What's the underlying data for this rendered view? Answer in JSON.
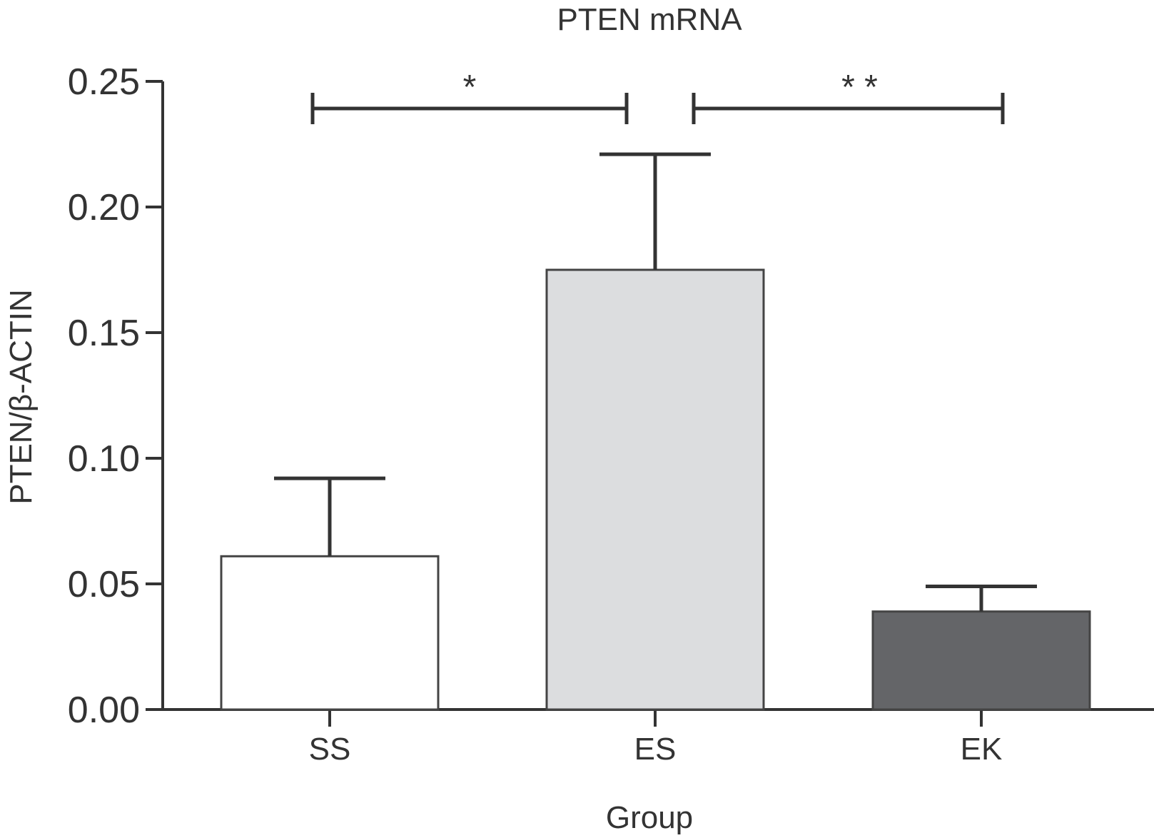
{
  "chart_data": {
    "type": "bar",
    "title": "PTEN mRNA",
    "xlabel": "Group",
    "ylabel": "PTEN/β-ACTIN",
    "categories": [
      "SS",
      "ES",
      "EK"
    ],
    "values": [
      0.061,
      0.175,
      0.039
    ],
    "error_upper": [
      0.092,
      0.221,
      0.049
    ],
    "ylim": [
      0,
      0.25
    ],
    "yticks": [
      "0.00",
      "0.05",
      "0.10",
      "0.15",
      "0.20",
      "0.25"
    ],
    "bar_colors": [
      "#ffffff",
      "#dcdddf",
      "#646568"
    ],
    "bar_stroke": "#444444",
    "axis_color": "#333333",
    "significance": [
      {
        "from": "SS",
        "to": "ES",
        "label": "*"
      },
      {
        "from": "ES",
        "to": "EK",
        "label": "* *"
      }
    ],
    "grid": false
  }
}
